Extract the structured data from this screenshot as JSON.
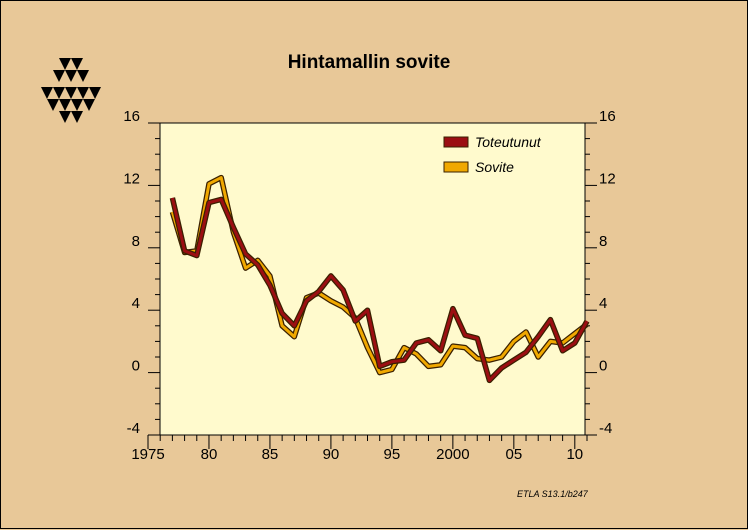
{
  "colors": {
    "background": "#e8c898",
    "plot_background": "#fffacd",
    "actual": "#9b0e12",
    "fitted": "#f0a800",
    "series_outline": "#3a2000"
  },
  "logo": {
    "icon": "etla-triangles-logo"
  },
  "source_note": "ETLA S13.1/b247",
  "chart_data": {
    "type": "line",
    "title": "Hintamallin sovite",
    "xlabel": "",
    "ylabel": "",
    "xlim": [
      1975,
      2011
    ],
    "ylim": [
      -4,
      16
    ],
    "y_ticks": [
      -4,
      0,
      4,
      8,
      12,
      16
    ],
    "x_ticks": [
      1975,
      1980,
      1985,
      1990,
      1995,
      2000,
      2005,
      2010
    ],
    "x_tick_labels": [
      "1975",
      "80",
      "85",
      "90",
      "95",
      "2000",
      "05",
      "10"
    ],
    "grid": false,
    "right_axis": true,
    "legend_position": "top-right",
    "x": [
      1977,
      1978,
      1979,
      1980,
      1981,
      1982,
      1983,
      1984,
      1985,
      1986,
      1987,
      1988,
      1989,
      1990,
      1991,
      1992,
      1993,
      1994,
      1995,
      1996,
      1997,
      1998,
      1999,
      2000,
      2001,
      2002,
      2003,
      2004,
      2005,
      2006,
      2007,
      2008,
      2009,
      2010,
      2011
    ],
    "series": [
      {
        "name": "Toteutunut",
        "values": [
          11.2,
          7.8,
          7.5,
          10.9,
          11.1,
          9.3,
          7.6,
          6.9,
          5.6,
          3.8,
          3.0,
          4.6,
          5.2,
          6.2,
          5.3,
          3.3,
          4.0,
          0.4,
          0.7,
          0.8,
          1.9,
          2.1,
          1.4,
          4.1,
          2.4,
          2.2,
          -0.5,
          0.3,
          0.8,
          1.3,
          2.3,
          3.4,
          1.4,
          1.9,
          3.3
        ]
      },
      {
        "name": "Sovite",
        "values": [
          10.3,
          7.7,
          7.8,
          12.1,
          12.5,
          9.0,
          6.7,
          7.2,
          6.2,
          3.0,
          2.3,
          4.8,
          5.1,
          4.6,
          4.2,
          3.5,
          1.6,
          0.0,
          0.2,
          1.6,
          1.2,
          0.4,
          0.5,
          1.7,
          1.6,
          0.9,
          0.8,
          1.0,
          2.0,
          2.6,
          1.0,
          2.0,
          1.9,
          2.5,
          3.1
        ]
      }
    ]
  }
}
